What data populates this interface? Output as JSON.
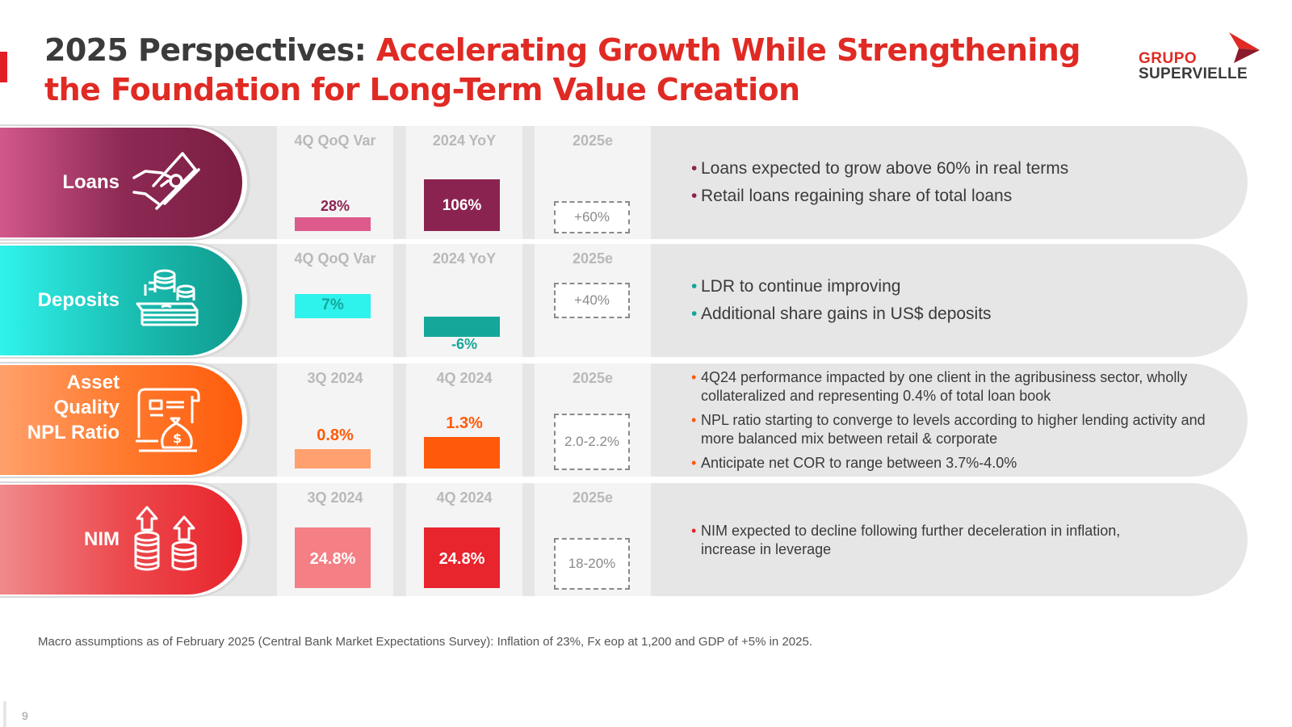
{
  "title": {
    "lead": "2025 Perspectives:",
    "highlight": "Accelerating Growth While Strengthening the Foundation for Long-Term Value Creation"
  },
  "logo": {
    "line1": "GRUPO",
    "line2": "SUPERVIELLE"
  },
  "colors": {
    "loans_bar1": "#dc5a8c",
    "loans_bar2": "#8b2350",
    "deposits_bar1": "#2ef2ec",
    "deposits_bar2": "#14a79a",
    "asset_bar1": "#ffa06e",
    "asset_bar2": "#ff5a0a",
    "nim_bar1": "#f47f84",
    "nim_bar2": "#e8242c"
  },
  "chart_data": [
    {
      "type": "bar",
      "title": "Loans",
      "categories": [
        "4Q QoQ Var",
        "2024 YoY"
      ],
      "values": [
        28,
        106
      ],
      "labels": [
        "28%",
        "106%"
      ],
      "estimate_label": "2025e",
      "estimate": "+60%",
      "bullets": [
        "Loans expected to grow above 60% in real terms",
        "Retail loans regaining share of total loans"
      ]
    },
    {
      "type": "bar",
      "title": "Deposits",
      "categories": [
        "4Q QoQ Var",
        "2024 YoY"
      ],
      "values": [
        7,
        -6
      ],
      "labels": [
        "7%",
        "-6%"
      ],
      "estimate_label": "2025e",
      "estimate": "+40%",
      "bullets": [
        "LDR to continue improving",
        "Additional share gains in US$ deposits"
      ]
    },
    {
      "type": "bar",
      "title": "Asset Quality NPL Ratio",
      "title_lines": [
        "Asset",
        "Quality",
        "NPL Ratio"
      ],
      "categories": [
        "3Q 2024",
        "4Q 2024"
      ],
      "values": [
        0.8,
        1.3
      ],
      "labels": [
        "0.8%",
        "1.3%"
      ],
      "estimate_label": "2025e",
      "estimate": "2.0-2.2%",
      "bullets": [
        "4Q24 performance impacted by one client in the agribusiness sector, wholly collateralized and representing 0.4% of total loan book",
        "NPL ratio starting to converge to levels according to higher lending activity and more balanced mix between retail & corporate",
        "Anticipate net COR to range between 3.7%-4.0%"
      ]
    },
    {
      "type": "bar",
      "title": "NIM",
      "categories": [
        "3Q 2024",
        "4Q 2024"
      ],
      "values": [
        24.8,
        24.8
      ],
      "labels": [
        "24.8%",
        "24.8%"
      ],
      "estimate_label": "2025e",
      "estimate": "18-20%",
      "bullets": [
        "NIM expected to decline following further deceleration in inflation, increase in leverage"
      ]
    }
  ],
  "footnote": "Macro assumptions as of February 2025 (Central Bank Market Expectations Survey): Inflation of 23%, Fx eop at 1,200 and GDP of +5% in 2025.",
  "page_number": "9"
}
